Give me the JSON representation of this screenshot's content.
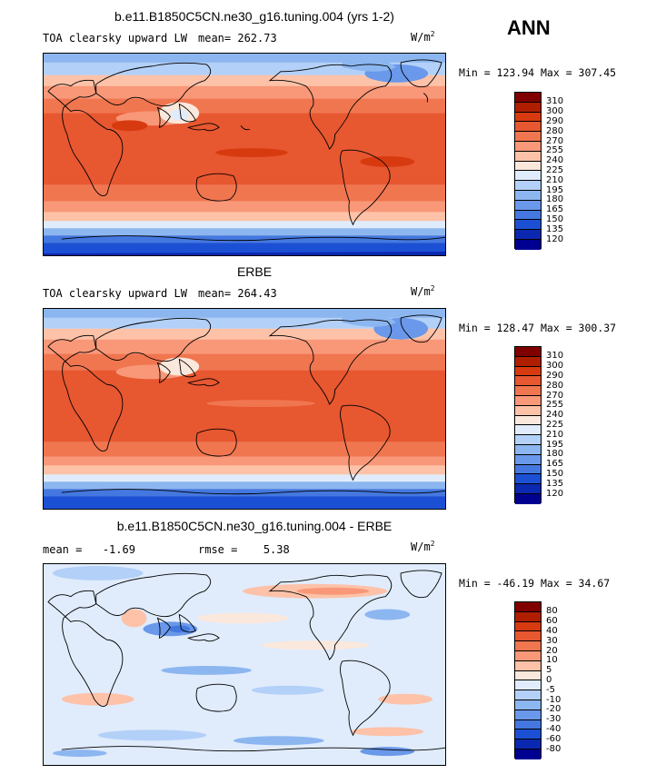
{
  "season": "ANN",
  "panels": [
    {
      "title": "b.e11.B1850C5CN.ne30_g16.tuning.004 (yrs 1-2)",
      "left_label": "TOA clearsky upward LW",
      "stat_label": "mean=",
      "stat_value": "262.73",
      "unit": "W/m",
      "unit_sup": "2",
      "minmax": "Min = 123.94 Max = 307.45",
      "colorbar_labels": [
        "310",
        "300",
        "290",
        "280",
        "270",
        "255",
        "240",
        "225",
        "210",
        "195",
        "180",
        "165",
        "150",
        "135",
        "120"
      ],
      "colors": [
        "#800000",
        "#b01e00",
        "#d83a10",
        "#e75730",
        "#f07650",
        "#f89878",
        "#fdc2a8",
        "#fbe8dc",
        "#e0ecfc",
        "#b3d0f8",
        "#8cb6f0",
        "#6a98ea",
        "#4478e0",
        "#1c50d4",
        "#0a28b0",
        "#000090"
      ]
    },
    {
      "title": "ERBE",
      "left_label": "TOA clearsky upward LW",
      "stat_label": "mean=",
      "stat_value": "264.43",
      "unit": "W/m",
      "unit_sup": "2",
      "minmax": "Min = 128.47 Max = 300.37",
      "colorbar_labels": [
        "310",
        "300",
        "290",
        "280",
        "270",
        "255",
        "240",
        "225",
        "210",
        "195",
        "180",
        "165",
        "150",
        "135",
        "120"
      ],
      "colors": [
        "#800000",
        "#b01e00",
        "#d83a10",
        "#e75730",
        "#f07650",
        "#f89878",
        "#fdc2a8",
        "#fbe8dc",
        "#e0ecfc",
        "#b3d0f8",
        "#8cb6f0",
        "#6a98ea",
        "#4478e0",
        "#1c50d4",
        "#0a28b0",
        "#000090"
      ]
    },
    {
      "title": "b.e11.B1850C5CN.ne30_g16.tuning.004 - ERBE",
      "mean_label": "mean =",
      "mean_value": "-1.69",
      "rmse_label": "rmse =",
      "rmse_value": "5.38",
      "unit": "W/m",
      "unit_sup": "2",
      "minmax": "Min = -46.19 Max =  34.67",
      "colorbar_labels": [
        "80",
        "60",
        "40",
        "30",
        "20",
        "10",
        "5",
        "0",
        "-5",
        "-10",
        "-20",
        "-30",
        "-40",
        "-60",
        "-80"
      ],
      "colors": [
        "#800000",
        "#b01e00",
        "#d83a10",
        "#e75730",
        "#f07650",
        "#f89878",
        "#fdc2a8",
        "#fbe8dc",
        "#e0ecfc",
        "#b3d0f8",
        "#8cb6f0",
        "#6a98ea",
        "#4478e0",
        "#1c50d4",
        "#0a28b0",
        "#000090"
      ]
    }
  ]
}
